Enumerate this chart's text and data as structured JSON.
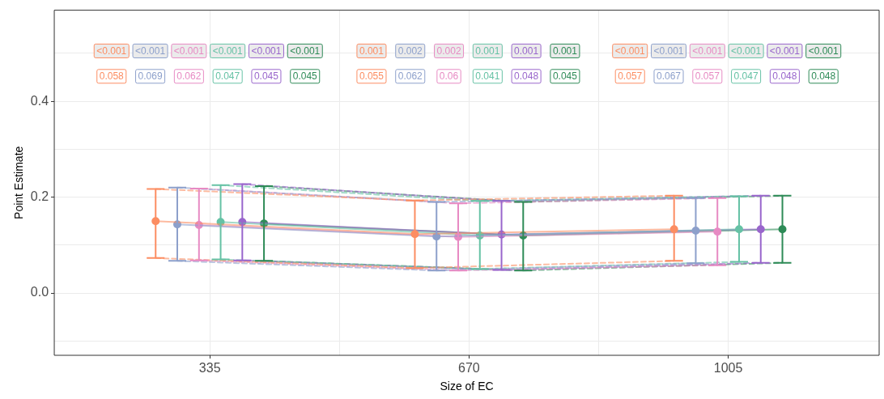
{
  "chart_data": {
    "type": "line",
    "xlabel": "Size of EC",
    "ylabel": "Point Estimate",
    "xlim": [
      134,
      1200
    ],
    "xticks": [
      335,
      {
        "value": 502.5,
        "label": null
      },
      670,
      {
        "value": 837.5,
        "label": null
      },
      1005
    ],
    "ylim": [
      -0.13,
      0.59
    ],
    "yticks": [
      {
        "value": -0.1,
        "label": null
      },
      "0.0",
      {
        "value": 0.1,
        "label": null
      },
      0.2,
      {
        "value": 0.3,
        "label": null
      },
      0.4,
      {
        "value": 0.5,
        "label": null
      }
    ],
    "grid": true,
    "legend": false,
    "marker": "circle",
    "line_style": "solid",
    "series": [
      {
        "color": "#fc8d62",
        "x": [
          265,
          600,
          935
        ],
        "values": [
          0.15,
          0.123,
          0.133
        ],
        "errors": [
          [
            0.073,
            0.217
          ],
          [
            0.052,
            0.193
          ],
          [
            0.067,
            0.203
          ]
        ]
      },
      {
        "color": "#8da0cb",
        "x": [
          293,
          628,
          963
        ],
        "values": [
          0.143,
          0.118,
          0.13
        ],
        "errors": [
          [
            0.067,
            0.22
          ],
          [
            0.047,
            0.19
          ],
          [
            0.062,
            0.198
          ]
        ]
      },
      {
        "color": "#e78ac3",
        "x": [
          321,
          656,
          991
        ],
        "values": [
          0.142,
          0.117,
          0.128
        ],
        "errors": [
          [
            0.068,
            0.218
          ],
          [
            0.047,
            0.187
          ],
          [
            0.058,
            0.198
          ]
        ]
      },
      {
        "color": "#66c2a5",
        "x": [
          349,
          684,
          1019
        ],
        "values": [
          0.148,
          0.12,
          0.133
        ],
        "errors": [
          [
            0.07,
            0.225
          ],
          [
            0.05,
            0.192
          ],
          [
            0.065,
            0.202
          ]
        ]
      },
      {
        "color": "#9966cc",
        "x": [
          377,
          712,
          1047
        ],
        "values": [
          0.148,
          0.122,
          0.133
        ],
        "errors": [
          [
            0.068,
            0.227
          ],
          [
            0.048,
            0.192
          ],
          [
            0.063,
            0.203
          ]
        ]
      },
      {
        "color": "#2e8b57",
        "x": [
          405,
          740,
          1075
        ],
        "values": [
          0.145,
          0.12,
          0.133
        ],
        "errors": [
          [
            0.067,
            0.223
          ],
          [
            0.047,
            0.19
          ],
          [
            0.063,
            0.203
          ]
        ]
      },
      {
        "type": "line",
        "line_style": "dashed",
        "marker": "none",
        "color": "#fc8d62",
        "x": [
          265,
          600,
          935
        ],
        "values": [
          0.073,
          0.052,
          0.067
        ]
      },
      {
        "type": "line",
        "line_style": "dashed",
        "marker": "none",
        "color": "#fc8d62",
        "x": [
          265,
          600,
          935
        ],
        "values": [
          0.217,
          0.193,
          0.203
        ]
      },
      {
        "type": "line",
        "line_style": "dashed",
        "marker": "none",
        "color": "#8da0cb",
        "x": [
          293,
          628,
          963
        ],
        "values": [
          0.067,
          0.047,
          0.062
        ]
      },
      {
        "type": "line",
        "line_style": "dashed",
        "marker": "none",
        "color": "#8da0cb",
        "x": [
          293,
          628,
          963
        ],
        "values": [
          0.22,
          0.19,
          0.198
        ]
      },
      {
        "type": "line",
        "line_style": "dashed",
        "marker": "none",
        "color": "#e78ac3",
        "x": [
          321,
          656,
          991
        ],
        "values": [
          0.068,
          0.047,
          0.058
        ]
      },
      {
        "type": "line",
        "line_style": "dashed",
        "marker": "none",
        "color": "#e78ac3",
        "x": [
          321,
          656,
          991
        ],
        "values": [
          0.218,
          0.187,
          0.198
        ]
      },
      {
        "type": "line",
        "line_style": "dashed",
        "marker": "none",
        "color": "#66c2a5",
        "x": [
          349,
          684,
          1019
        ],
        "values": [
          0.07,
          0.05,
          0.065
        ]
      },
      {
        "type": "line",
        "line_style": "dashed",
        "marker": "none",
        "color": "#66c2a5",
        "x": [
          349,
          684,
          1019
        ],
        "values": [
          0.225,
          0.192,
          0.202
        ]
      },
      {
        "type": "line",
        "line_style": "dashed",
        "marker": "none",
        "color": "#9966cc",
        "x": [
          377,
          712,
          1047
        ],
        "values": [
          0.068,
          0.048,
          0.063
        ]
      },
      {
        "type": "line",
        "line_style": "dashed",
        "marker": "none",
        "color": "#9966cc",
        "x": [
          377,
          712,
          1047
        ],
        "values": [
          0.227,
          0.192,
          0.203
        ]
      },
      {
        "type": "line",
        "line_style": "dashed",
        "marker": "none",
        "color": "#2e8b57",
        "x": [
          405,
          740,
          1075
        ],
        "values": [
          0.067,
          0.047,
          0.063
        ]
      },
      {
        "type": "line",
        "line_style": "dashed",
        "marker": "none",
        "color": "#2e8b57",
        "x": [
          405,
          740,
          1075
        ],
        "values": [
          0.223,
          0.19,
          0.203
        ]
      }
    ],
    "annotations": [
      {
        "text": "<0.001",
        "x": 208,
        "y": 0.505
      },
      {
        "text": "<0.001",
        "x": 258,
        "y": 0.505
      },
      {
        "text": "<0.001",
        "x": 308,
        "y": 0.505
      },
      {
        "text": "<0.001",
        "x": 358,
        "y": 0.505
      },
      {
        "text": "<0.001",
        "x": 408,
        "y": 0.505
      },
      {
        "text": "<0.001",
        "x": 458,
        "y": 0.505
      },
      {
        "text": "0.058",
        "x": 208,
        "y": 0.452
      },
      {
        "text": "0.069",
        "x": 258,
        "y": 0.452
      },
      {
        "text": "0.062",
        "x": 308,
        "y": 0.452
      },
      {
        "text": "0.047",
        "x": 358,
        "y": 0.452
      },
      {
        "text": "0.045",
        "x": 408,
        "y": 0.452
      },
      {
        "text": "0.045",
        "x": 458,
        "y": 0.452
      },
      {
        "text": "0.001",
        "x": 544,
        "y": 0.505
      },
      {
        "text": "0.002",
        "x": 594,
        "y": 0.505
      },
      {
        "text": "0.002",
        "x": 644,
        "y": 0.505
      },
      {
        "text": "0.001",
        "x": 694,
        "y": 0.505
      },
      {
        "text": "0.001",
        "x": 744,
        "y": 0.505
      },
      {
        "text": "0.001",
        "x": 794,
        "y": 0.505
      },
      {
        "text": "0.055",
        "x": 544,
        "y": 0.452
      },
      {
        "text": "0.062",
        "x": 594,
        "y": 0.452
      },
      {
        "text": "0.06",
        "x": 644,
        "y": 0.452
      },
      {
        "text": "0.041",
        "x": 694,
        "y": 0.452
      },
      {
        "text": "0.048",
        "x": 744,
        "y": 0.452
      },
      {
        "text": "0.045",
        "x": 794,
        "y": 0.452
      },
      {
        "text": "<0.001",
        "x": 878,
        "y": 0.505
      },
      {
        "text": "<0.001",
        "x": 928,
        "y": 0.505
      },
      {
        "text": "<0.001",
        "x": 978,
        "y": 0.505
      },
      {
        "text": "<0.001",
        "x": 1028,
        "y": 0.505
      },
      {
        "text": "<0.001",
        "x": 1078,
        "y": 0.505
      },
      {
        "text": "<0.001",
        "x": 1128,
        "y": 0.505
      },
      {
        "text": "0.057",
        "x": 878,
        "y": 0.452
      },
      {
        "text": "0.067",
        "x": 928,
        "y": 0.452
      },
      {
        "text": "0.057",
        "x": 978,
        "y": 0.452
      },
      {
        "text": "0.047",
        "x": 1028,
        "y": 0.452
      },
      {
        "text": "0.048",
        "x": 1078,
        "y": 0.452
      },
      {
        "text": "0.048",
        "x": 1128,
        "y": 0.452
      }
    ]
  }
}
